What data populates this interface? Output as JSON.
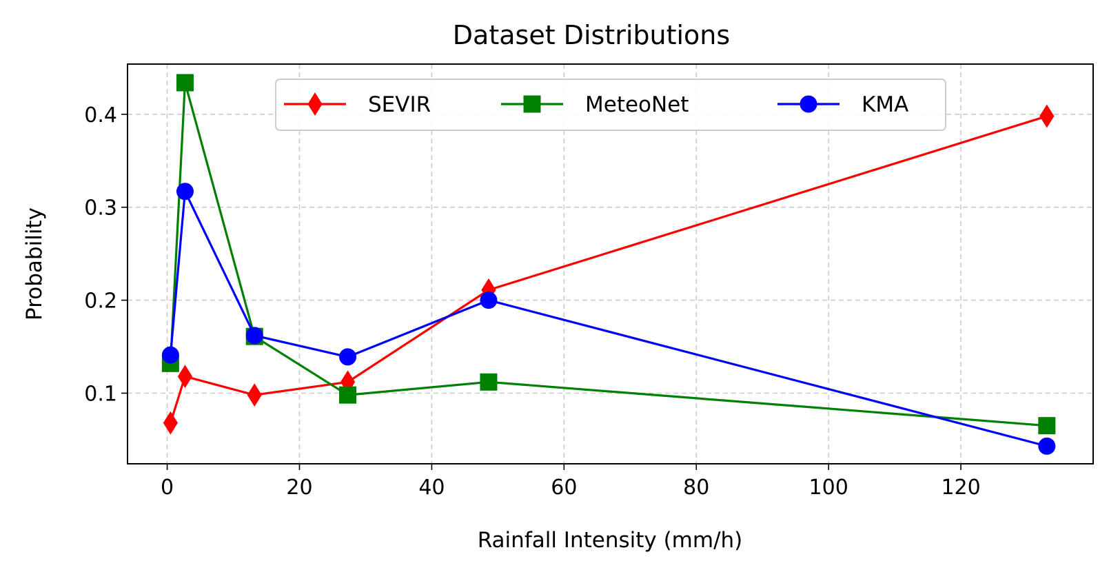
{
  "chart_data": {
    "type": "line",
    "title": "Dataset Distributions",
    "xlabel": "Rainfall Intensity (mm/h)",
    "ylabel": "Probability",
    "xlim": [
      -6,
      140
    ],
    "ylim": [
      0.024,
      0.454
    ],
    "xticks": [
      0,
      20,
      40,
      60,
      80,
      100,
      120
    ],
    "yticks": [
      0.1,
      0.2,
      0.3,
      0.4
    ],
    "xtick_labels": [
      "0",
      "20",
      "40",
      "60",
      "80",
      "100",
      "120"
    ],
    "ytick_labels": [
      "0.1",
      "0.2",
      "0.3",
      "0.4"
    ],
    "grid": true,
    "legend_position": "upper-center",
    "series": [
      {
        "name": "SEVIR",
        "color": "#ff0000",
        "marker": "diamond",
        "x": [
          0.5,
          2.7,
          13.2,
          27.3,
          48.6,
          133.0
        ],
        "y": [
          0.068,
          0.118,
          0.098,
          0.112,
          0.211,
          0.398
        ]
      },
      {
        "name": "MeteoNet",
        "color": "#008000",
        "marker": "square",
        "x": [
          0.5,
          2.7,
          13.2,
          27.3,
          48.6,
          133.0
        ],
        "y": [
          0.132,
          0.434,
          0.161,
          0.098,
          0.112,
          0.065
        ]
      },
      {
        "name": "KMA",
        "color": "#0000ff",
        "marker": "circle",
        "x": [
          0.5,
          2.7,
          13.2,
          27.3,
          48.6,
          133.0
        ],
        "y": [
          0.141,
          0.317,
          0.162,
          0.139,
          0.2,
          0.043
        ]
      }
    ]
  }
}
